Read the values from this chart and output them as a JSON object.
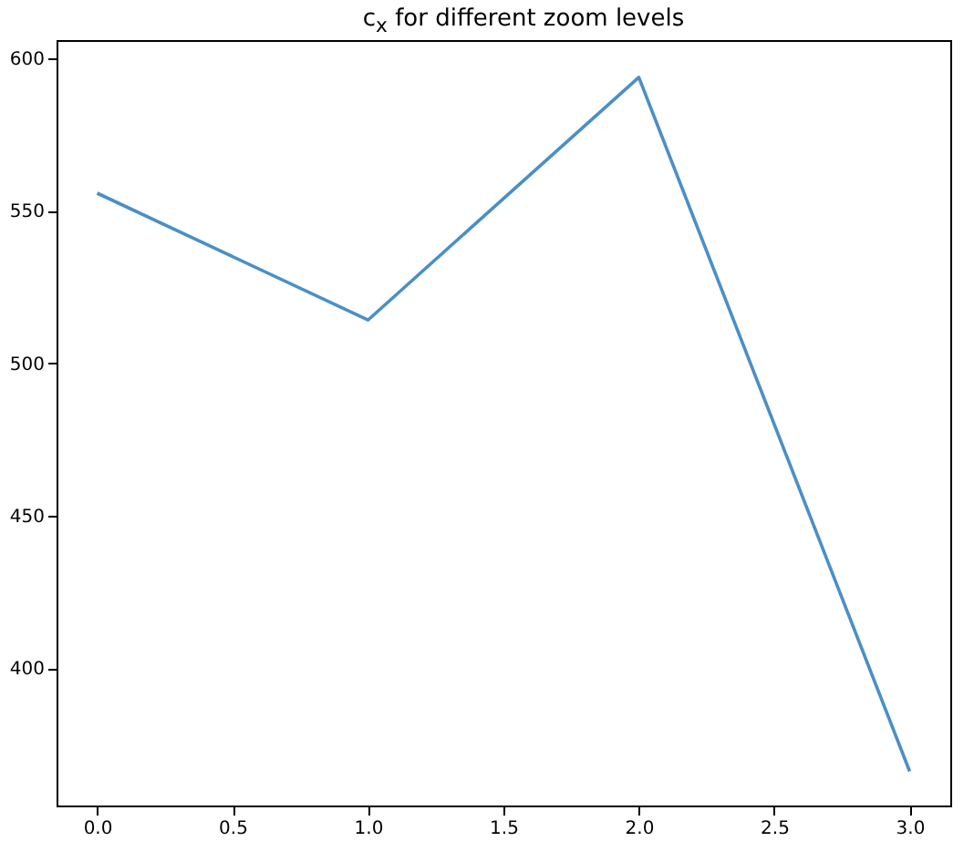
{
  "chart_data": {
    "type": "line",
    "title": "c$_{x}$ for different zoom levels",
    "x": [
      0,
      1,
      2,
      3
    ],
    "series": [
      {
        "color": "#4c8fc4",
        "values": [
          555.8,
          514.2,
          593.8,
          366.2
        ]
      }
    ],
    "xlim": [
      -0.15,
      3.15
    ],
    "xticks": [
      {
        "value": 0,
        "label": "0.0"
      },
      {
        "value": 0.5,
        "label": "0.5"
      },
      {
        "value": 1,
        "label": "1.0"
      },
      {
        "value": 1.5,
        "label": "1.5"
      },
      {
        "value": 2,
        "label": "2.0"
      },
      {
        "value": 2.5,
        "label": "2.5"
      },
      {
        "value": 3,
        "label": "3.0"
      }
    ],
    "ylim": [
      355,
      606
    ],
    "yticks": [
      400,
      450,
      500,
      550,
      600
    ],
    "grid": false,
    "marker": "none",
    "line_style": "solid"
  }
}
